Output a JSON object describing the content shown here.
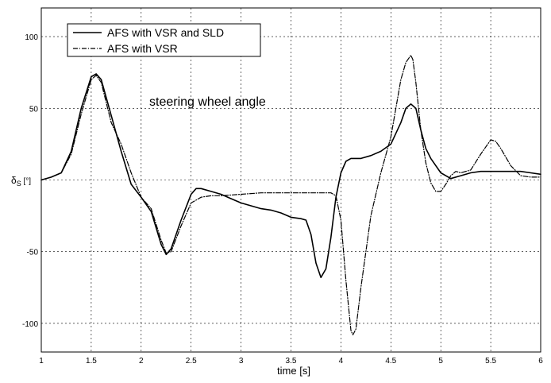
{
  "chart_data": {
    "type": "line",
    "title": "",
    "xlabel": "time [s]",
    "ylabel_main": "δ",
    "ylabel_sub": "S",
    "ylabel_unit": " [°]",
    "xlim": [
      1,
      6
    ],
    "ylim": [
      -120,
      120
    ],
    "grid": true,
    "legend_position": "top-left",
    "annotation": "steering wheel angle",
    "xticks": [
      1,
      1.5,
      2,
      2.5,
      3,
      3.5,
      4,
      4.5,
      5,
      5.5,
      6
    ],
    "xtick_labels": [
      "1",
      "1.5",
      "2",
      "2.5",
      "3",
      "3.5",
      "4",
      "4.5",
      "5",
      "5.5",
      "6"
    ],
    "yticks": [
      -100,
      -50,
      0,
      50,
      100
    ],
    "ytick_labels": [
      "-100",
      "-50",
      "0",
      "50",
      "100"
    ],
    "series": [
      {
        "name": "AFS with VSR and SLD",
        "style": "solid",
        "color": "#000000",
        "points": [
          [
            1.0,
            0
          ],
          [
            1.1,
            2
          ],
          [
            1.2,
            5
          ],
          [
            1.3,
            20
          ],
          [
            1.4,
            50
          ],
          [
            1.5,
            72
          ],
          [
            1.55,
            74
          ],
          [
            1.6,
            70
          ],
          [
            1.7,
            45
          ],
          [
            1.8,
            20
          ],
          [
            1.9,
            -3
          ],
          [
            2.0,
            -12
          ],
          [
            2.1,
            -22
          ],
          [
            2.2,
            -45
          ],
          [
            2.25,
            -52
          ],
          [
            2.3,
            -48
          ],
          [
            2.4,
            -28
          ],
          [
            2.5,
            -10
          ],
          [
            2.55,
            -6
          ],
          [
            2.6,
            -6
          ],
          [
            2.7,
            -8
          ],
          [
            2.8,
            -10
          ],
          [
            2.9,
            -13
          ],
          [
            3.0,
            -16
          ],
          [
            3.1,
            -18
          ],
          [
            3.2,
            -20
          ],
          [
            3.3,
            -21
          ],
          [
            3.4,
            -23
          ],
          [
            3.5,
            -26
          ],
          [
            3.6,
            -27
          ],
          [
            3.65,
            -28
          ],
          [
            3.7,
            -38
          ],
          [
            3.75,
            -58
          ],
          [
            3.8,
            -68
          ],
          [
            3.85,
            -62
          ],
          [
            3.9,
            -40
          ],
          [
            3.95,
            -12
          ],
          [
            4.0,
            5
          ],
          [
            4.05,
            13
          ],
          [
            4.1,
            15
          ],
          [
            4.2,
            15
          ],
          [
            4.3,
            17
          ],
          [
            4.4,
            20
          ],
          [
            4.5,
            25
          ],
          [
            4.6,
            40
          ],
          [
            4.65,
            50
          ],
          [
            4.7,
            53
          ],
          [
            4.75,
            50
          ],
          [
            4.8,
            35
          ],
          [
            4.85,
            22
          ],
          [
            4.9,
            15
          ],
          [
            5.0,
            5
          ],
          [
            5.1,
            1
          ],
          [
            5.2,
            3
          ],
          [
            5.3,
            5
          ],
          [
            5.4,
            6
          ],
          [
            5.5,
            6
          ],
          [
            5.6,
            6
          ],
          [
            5.7,
            6
          ],
          [
            5.8,
            6
          ],
          [
            5.9,
            5
          ],
          [
            6.0,
            4
          ]
        ]
      },
      {
        "name": "AFS with VSR",
        "style": "dashdot",
        "color": "#000000",
        "points": [
          [
            1.0,
            0
          ],
          [
            1.1,
            2
          ],
          [
            1.2,
            5
          ],
          [
            1.3,
            18
          ],
          [
            1.4,
            46
          ],
          [
            1.5,
            70
          ],
          [
            1.55,
            73
          ],
          [
            1.6,
            68
          ],
          [
            1.7,
            40
          ],
          [
            1.8,
            25
          ],
          [
            1.9,
            5
          ],
          [
            2.0,
            -12
          ],
          [
            2.1,
            -20
          ],
          [
            2.2,
            -42
          ],
          [
            2.25,
            -51
          ],
          [
            2.3,
            -50
          ],
          [
            2.4,
            -32
          ],
          [
            2.5,
            -16
          ],
          [
            2.6,
            -12
          ],
          [
            2.7,
            -11
          ],
          [
            2.8,
            -11
          ],
          [
            3.0,
            -10
          ],
          [
            3.2,
            -9
          ],
          [
            3.4,
            -9
          ],
          [
            3.6,
            -9
          ],
          [
            3.8,
            -9
          ],
          [
            3.9,
            -9
          ],
          [
            3.95,
            -11
          ],
          [
            4.0,
            -28
          ],
          [
            4.05,
            -70
          ],
          [
            4.1,
            -105
          ],
          [
            4.12,
            -108
          ],
          [
            4.15,
            -104
          ],
          [
            4.2,
            -75
          ],
          [
            4.3,
            -25
          ],
          [
            4.4,
            5
          ],
          [
            4.5,
            30
          ],
          [
            4.55,
            50
          ],
          [
            4.6,
            70
          ],
          [
            4.65,
            82
          ],
          [
            4.7,
            87
          ],
          [
            4.72,
            84
          ],
          [
            4.75,
            68
          ],
          [
            4.8,
            35
          ],
          [
            4.85,
            12
          ],
          [
            4.9,
            -2
          ],
          [
            4.95,
            -8
          ],
          [
            5.0,
            -8
          ],
          [
            5.05,
            -3
          ],
          [
            5.1,
            3
          ],
          [
            5.15,
            6
          ],
          [
            5.2,
            5
          ],
          [
            5.3,
            7
          ],
          [
            5.4,
            18
          ],
          [
            5.5,
            28
          ],
          [
            5.55,
            27
          ],
          [
            5.6,
            22
          ],
          [
            5.7,
            10
          ],
          [
            5.8,
            3
          ],
          [
            5.9,
            2
          ],
          [
            6.0,
            2
          ]
        ]
      }
    ]
  }
}
